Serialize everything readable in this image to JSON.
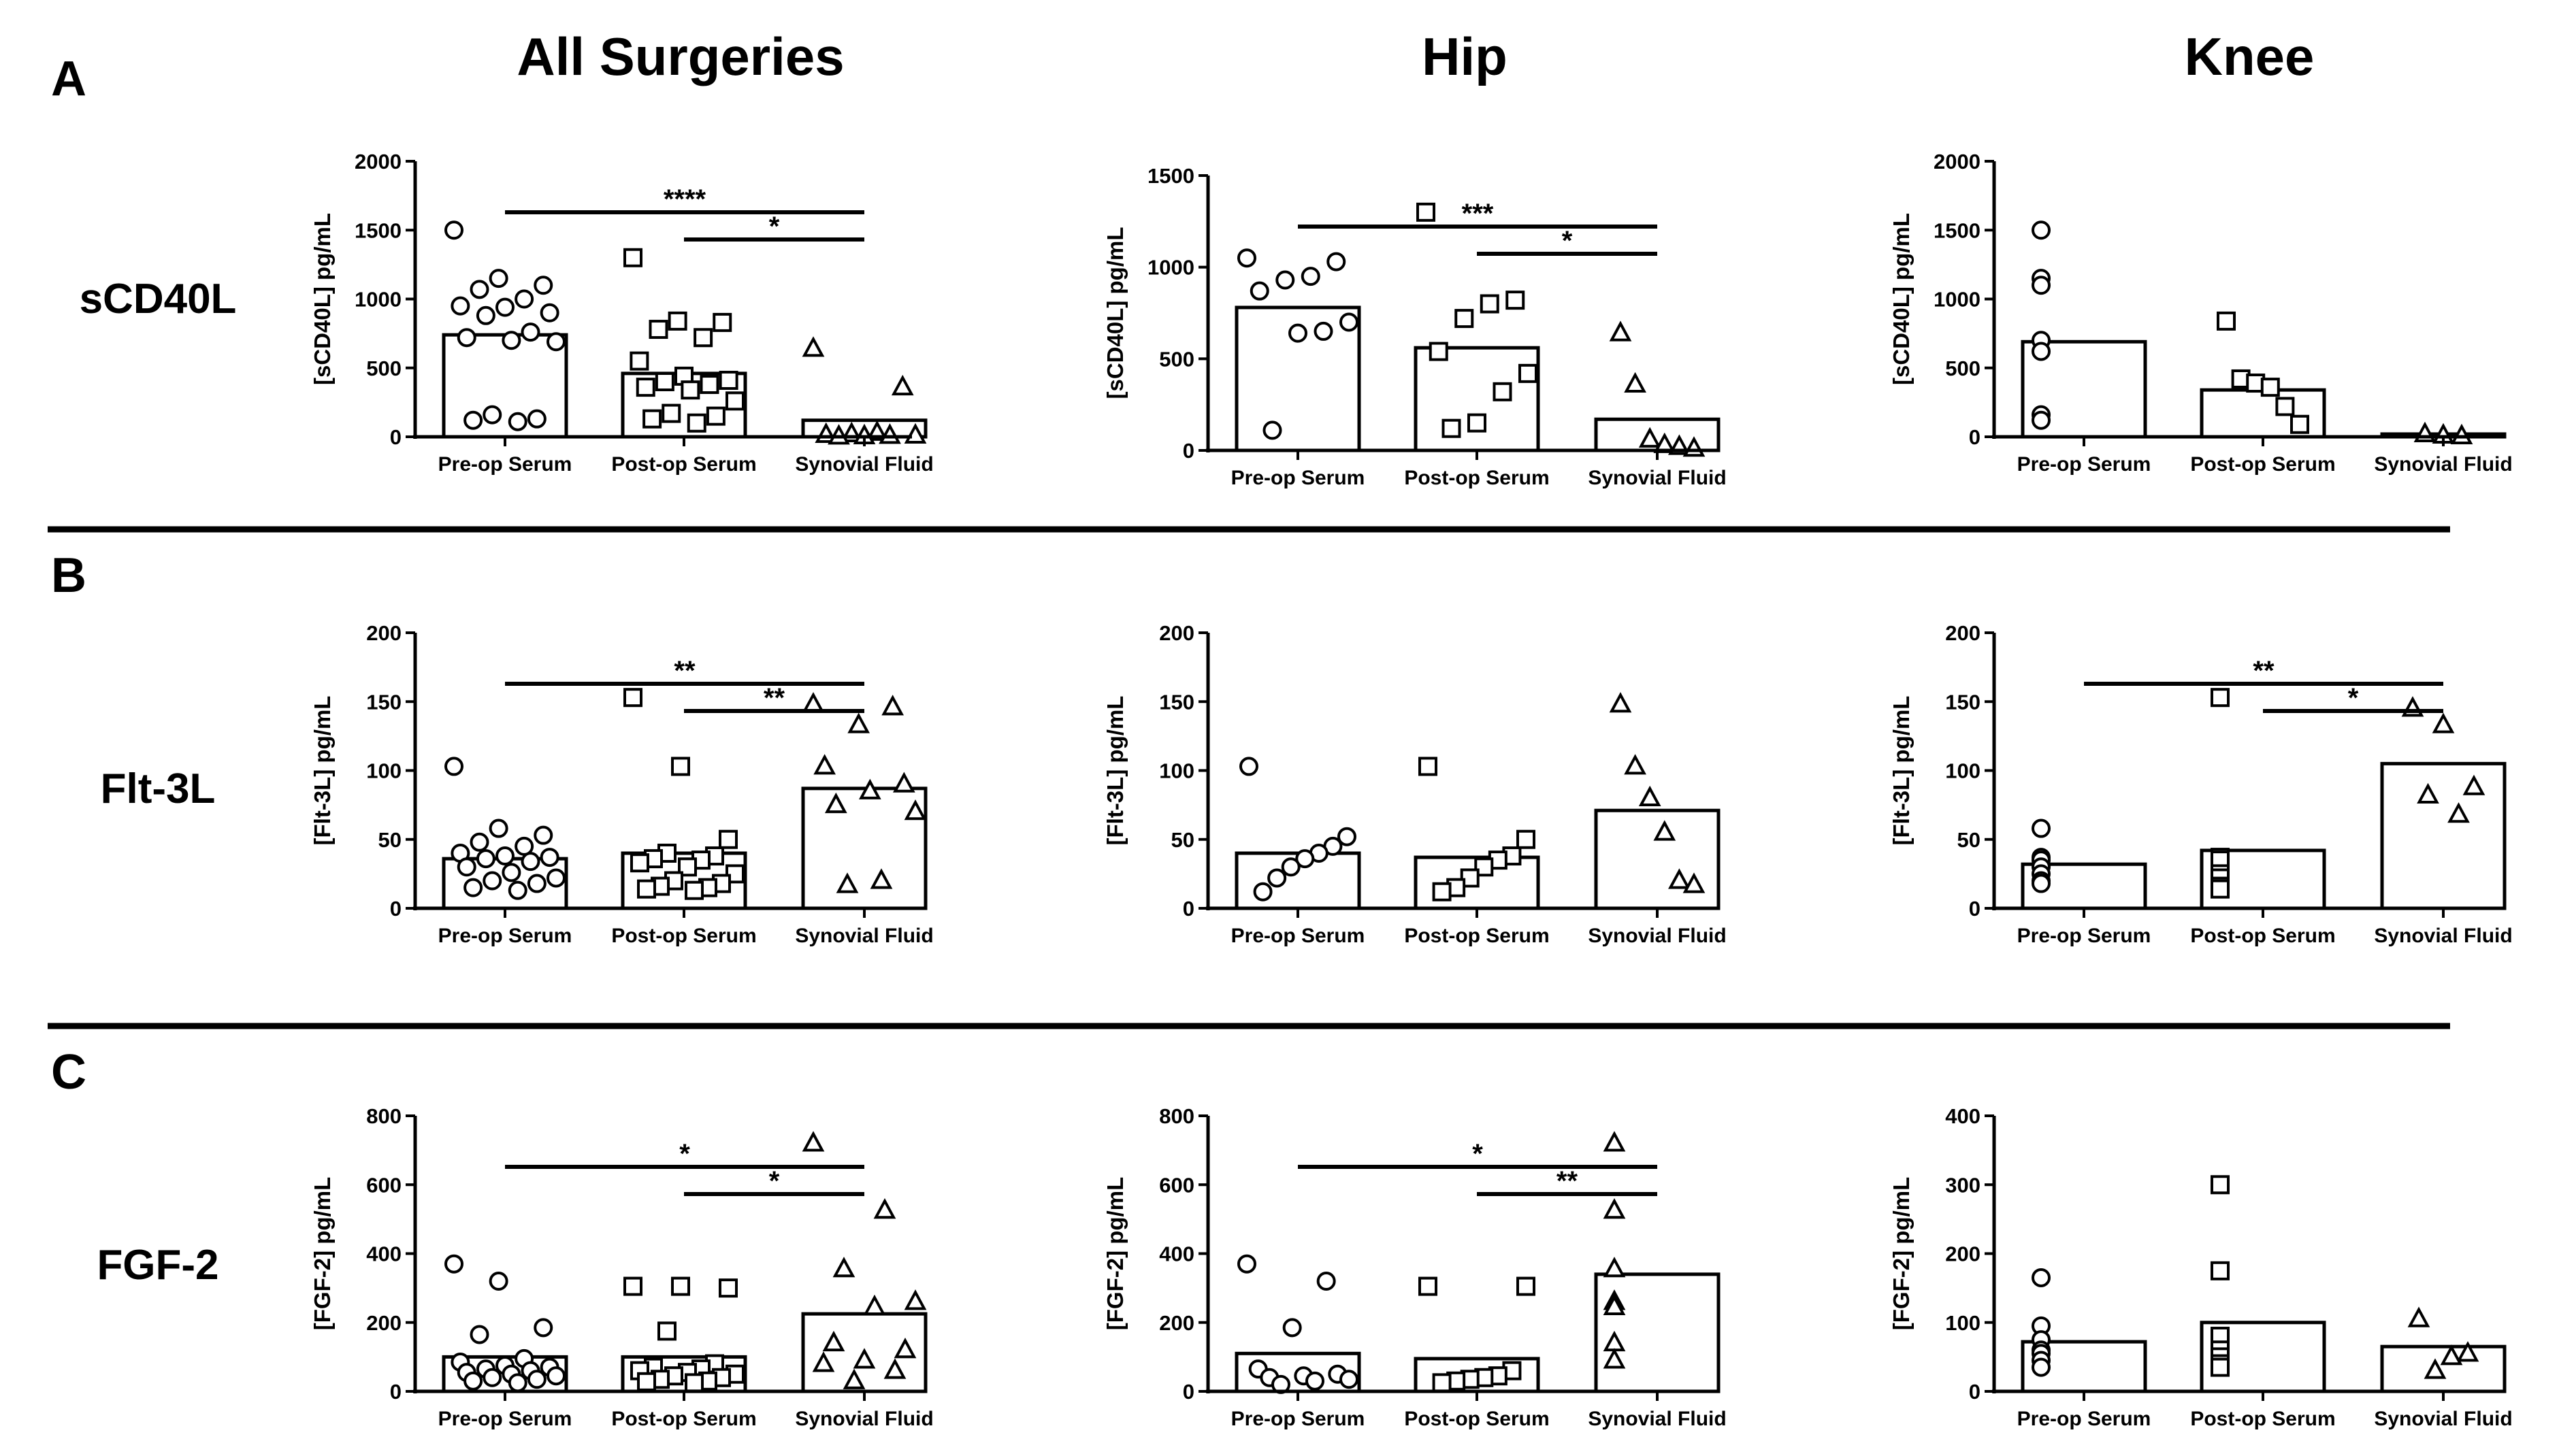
{
  "figure": {
    "col_headers": [
      "All Surgeries",
      "Hip",
      "Knee"
    ],
    "row_letters": [
      "A",
      "B",
      "C"
    ],
    "row_labels": [
      "sCD40L",
      "Flt-3L",
      "FGF-2"
    ]
  },
  "chart_data": [
    {
      "type": "bar",
      "row": 0,
      "col": 0,
      "title": "All Surgeries",
      "xlabel": "",
      "ylabel": "[sCD40L] pg/mL",
      "categories": [
        "Pre-op Serum",
        "Post-op Serum",
        "Synovial Fluid"
      ],
      "values": [
        740,
        460,
        120
      ],
      "ylim": [
        0,
        2000
      ],
      "yticks": [
        0,
        500,
        1000,
        1500,
        2000
      ],
      "markers": [
        "circle",
        "square",
        "triangle"
      ],
      "points": [
        [
          1500,
          1150,
          1100,
          1070,
          1000,
          950,
          940,
          900,
          880,
          760,
          720,
          700,
          690,
          160,
          130,
          120,
          110
        ],
        [
          1300,
          840,
          830,
          780,
          720,
          550,
          440,
          410,
          400,
          380,
          360,
          340,
          260,
          170,
          150,
          130,
          100
        ],
        [
          640,
          360,
          30,
          20,
          15,
          10,
          8,
          5,
          3
        ]
      ],
      "significance": [
        {
          "from": 0,
          "to": 2,
          "label": "****"
        },
        {
          "from": 1,
          "to": 2,
          "label": "*"
        }
      ]
    },
    {
      "type": "bar",
      "row": 0,
      "col": 1,
      "title": "Hip",
      "xlabel": "",
      "ylabel": "[sCD40L] pg/mL",
      "categories": [
        "Pre-op Serum",
        "Post-op Serum",
        "Synovial Fluid"
      ],
      "values": [
        780,
        560,
        170
      ],
      "ylim": [
        0,
        1500
      ],
      "yticks": [
        0,
        500,
        1000,
        1500
      ],
      "markers": [
        "circle",
        "square",
        "triangle"
      ],
      "points": [
        [
          1050,
          1030,
          950,
          930,
          870,
          700,
          650,
          640,
          110
        ],
        [
          1300,
          820,
          800,
          720,
          540,
          420,
          320,
          150,
          120
        ],
        [
          640,
          360,
          60,
          30,
          20,
          10
        ]
      ],
      "significance": [
        {
          "from": 0,
          "to": 2,
          "label": "***"
        },
        {
          "from": 1,
          "to": 2,
          "label": "*"
        }
      ]
    },
    {
      "type": "bar",
      "row": 0,
      "col": 2,
      "title": "Knee",
      "xlabel": "",
      "ylabel": "[sCD40L] pg/mL",
      "categories": [
        "Pre-op Serum",
        "Post-op Serum",
        "Synovial Fluid"
      ],
      "values": [
        690,
        340,
        20
      ],
      "ylim": [
        0,
        2000
      ],
      "yticks": [
        0,
        500,
        1000,
        1500,
        2000
      ],
      "markers": [
        "circle",
        "square",
        "triangle"
      ],
      "points": [
        [
          1500,
          1150,
          1100,
          700,
          620,
          160,
          120
        ],
        [
          840,
          420,
          390,
          360,
          220,
          90
        ],
        [
          20,
          10,
          5
        ]
      ],
      "significance": []
    },
    {
      "type": "bar",
      "row": 1,
      "col": 0,
      "title": "",
      "xlabel": "",
      "ylabel": "[Flt-3L] pg/mL",
      "categories": [
        "Pre-op Serum",
        "Post-op Serum",
        "Synovial Fluid"
      ],
      "values": [
        36,
        40,
        87
      ],
      "ylim": [
        0,
        200
      ],
      "yticks": [
        0,
        50,
        100,
        150,
        200
      ],
      "markers": [
        "circle",
        "square",
        "triangle"
      ],
      "points": [
        [
          103,
          58,
          53,
          48,
          45,
          40,
          38,
          37,
          36,
          34,
          30,
          26,
          22,
          20,
          18,
          15,
          13
        ],
        [
          153,
          103,
          50,
          40,
          38,
          36,
          35,
          33,
          30,
          25,
          20,
          18,
          16,
          15,
          14,
          13
        ],
        [
          148,
          146,
          133,
          103,
          90,
          85,
          75,
          70,
          20,
          17
        ]
      ],
      "significance": [
        {
          "from": 0,
          "to": 2,
          "label": "**"
        },
        {
          "from": 1,
          "to": 2,
          "label": "**"
        }
      ]
    },
    {
      "type": "bar",
      "row": 1,
      "col": 1,
      "title": "",
      "xlabel": "",
      "ylabel": "[Flt-3L] pg/mL",
      "categories": [
        "Pre-op Serum",
        "Post-op Serum",
        "Synovial Fluid"
      ],
      "values": [
        40,
        37,
        71
      ],
      "ylim": [
        0,
        200
      ],
      "yticks": [
        0,
        50,
        100,
        150,
        200
      ],
      "markers": [
        "circle",
        "square",
        "triangle"
      ],
      "points": [
        [
          103,
          52,
          45,
          40,
          36,
          30,
          22,
          12
        ],
        [
          103,
          50,
          38,
          35,
          30,
          22,
          15,
          12
        ],
        [
          148,
          103,
          80,
          55,
          20,
          17
        ]
      ],
      "significance": []
    },
    {
      "type": "bar",
      "row": 1,
      "col": 2,
      "title": "",
      "xlabel": "",
      "ylabel": "[Flt-3L] pg/mL",
      "categories": [
        "Pre-op Serum",
        "Post-op Serum",
        "Synovial Fluid"
      ],
      "values": [
        32,
        42,
        105
      ],
      "ylim": [
        0,
        200
      ],
      "yticks": [
        0,
        50,
        100,
        150,
        200
      ],
      "markers": [
        "circle",
        "square",
        "triangle"
      ],
      "points": [
        [
          58,
          37,
          35,
          30,
          25,
          20,
          18
        ],
        [
          153,
          37,
          35,
          25,
          22,
          16,
          14
        ],
        [
          145,
          133,
          88,
          82,
          68
        ]
      ],
      "significance": [
        {
          "from": 0,
          "to": 2,
          "label": "**"
        },
        {
          "from": 1,
          "to": 2,
          "label": "*"
        }
      ]
    },
    {
      "type": "bar",
      "row": 2,
      "col": 0,
      "title": "",
      "xlabel": "",
      "ylabel": "[FGF-2] pg/mL",
      "categories": [
        "Pre-op Serum",
        "Post-op Serum",
        "Synovial Fluid"
      ],
      "values": [
        100,
        100,
        225
      ],
      "ylim": [
        0,
        800
      ],
      "yticks": [
        0,
        200,
        400,
        600,
        800
      ],
      "markers": [
        "circle",
        "square",
        "triangle"
      ],
      "points": [
        [
          370,
          320,
          185,
          165,
          95,
          85,
          75,
          70,
          65,
          60,
          55,
          50,
          45,
          40,
          35,
          30,
          25
        ],
        [
          305,
          305,
          300,
          175,
          80,
          70,
          65,
          60,
          55,
          50,
          45,
          40,
          35,
          30,
          28,
          25
        ],
        [
          720,
          525,
          355,
          260,
          245,
          140,
          120,
          90,
          80,
          60,
          30
        ]
      ],
      "significance": [
        {
          "from": 0,
          "to": 2,
          "label": "*"
        },
        {
          "from": 1,
          "to": 2,
          "label": "*"
        }
      ]
    },
    {
      "type": "bar",
      "row": 2,
      "col": 1,
      "title": "",
      "xlabel": "",
      "ylabel": "[FGF-2] pg/mL",
      "categories": [
        "Pre-op Serum",
        "Post-op Serum",
        "Synovial Fluid"
      ],
      "values": [
        110,
        95,
        340
      ],
      "ylim": [
        0,
        800
      ],
      "yticks": [
        0,
        200,
        400,
        600,
        800
      ],
      "markers": [
        "circle",
        "square",
        "triangle"
      ],
      "points": [
        [
          370,
          320,
          185,
          65,
          50,
          45,
          40,
          35,
          30,
          20
        ],
        [
          305,
          305,
          60,
          45,
          40,
          35,
          30,
          25
        ],
        [
          720,
          525,
          355,
          260,
          245,
          140,
          90
        ]
      ],
      "significance": [
        {
          "from": 0,
          "to": 2,
          "label": "*"
        },
        {
          "from": 1,
          "to": 2,
          "label": "**"
        }
      ]
    },
    {
      "type": "bar",
      "row": 2,
      "col": 2,
      "title": "",
      "xlabel": "",
      "ylabel": "[FGF-2] pg/mL",
      "categories": [
        "Pre-op Serum",
        "Post-op Serum",
        "Synovial Fluid"
      ],
      "values": [
        72,
        100,
        65
      ],
      "ylim": [
        0,
        400
      ],
      "yticks": [
        0,
        100,
        200,
        300,
        400
      ],
      "markers": [
        "circle",
        "square",
        "triangle"
      ],
      "points": [
        [
          165,
          95,
          75,
          60,
          55,
          45,
          35
        ],
        [
          300,
          175,
          80,
          60,
          50,
          40,
          35
        ],
        [
          105,
          55,
          50,
          30
        ]
      ],
      "significance": []
    }
  ]
}
